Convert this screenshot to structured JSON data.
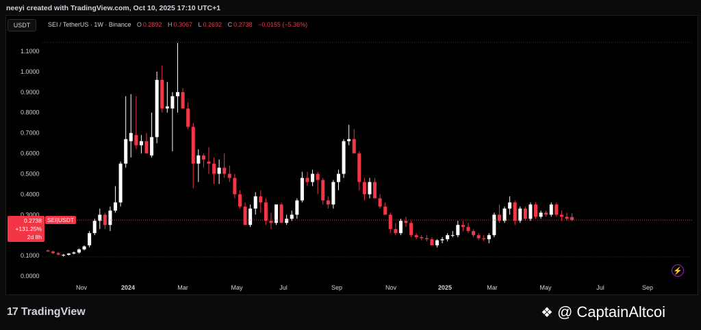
{
  "header": {
    "created_text": "neeyi created with TradingView.com, Oct 10, 2025 17:10 UTC+1"
  },
  "toolbar": {
    "currency": "USDT"
  },
  "legend": {
    "symbol": "SEI / TetherUS · 1W · Binance",
    "o_label": "O",
    "o_value": "0.2892",
    "h_label": "H",
    "h_value": "0.3067",
    "l_label": "L",
    "l_value": "0.2692",
    "c_label": "C",
    "c_value": "0.2738",
    "change": "−0.0155 (−5.36%)"
  },
  "price_tag": {
    "price": "0.2738",
    "change": "+131.25%",
    "countdown": "2d 8h",
    "pair": "SEI|USDT"
  },
  "footer": {
    "brand": "TradingView",
    "watermark": "@ CaptainAltcoi"
  },
  "colors": {
    "up": "#ffffff",
    "down": "#f23645",
    "background": "#000000",
    "accent": "#9c27b0"
  },
  "icons": {
    "logo": "tradingview-logo-icon",
    "watermark": "binance-diamond-icon",
    "bolt": "lightning-icon"
  },
  "chart_data": {
    "type": "candlestick",
    "title": "",
    "ylim": [
      0.0,
      1.15
    ],
    "y_ticks": [
      "0.0000",
      "0.1000",
      "0.2000",
      "0.3000",
      "0.4000",
      "0.5000",
      "0.6000",
      "0.7000",
      "0.8000",
      "0.9000",
      "1.0000",
      "1.1000"
    ],
    "x_ticks": [
      "Nov",
      "2024",
      "Mar",
      "May",
      "Jul",
      "Sep",
      "Nov",
      "2025",
      "Mar",
      "May",
      "Jul",
      "Sep"
    ],
    "grid": false,
    "last_price": 0.2738,
    "ohlc": [
      [
        0.125,
        0.13,
        0.118,
        0.12
      ],
      [
        0.12,
        0.125,
        0.108,
        0.112
      ],
      [
        0.112,
        0.118,
        0.1,
        0.105
      ],
      [
        0.1,
        0.108,
        0.095,
        0.104
      ],
      [
        0.104,
        0.112,
        0.1,
        0.11
      ],
      [
        0.11,
        0.12,
        0.106,
        0.115
      ],
      [
        0.115,
        0.135,
        0.11,
        0.13
      ],
      [
        0.13,
        0.15,
        0.125,
        0.145
      ],
      [
        0.15,
        0.22,
        0.14,
        0.21
      ],
      [
        0.21,
        0.28,
        0.2,
        0.27
      ],
      [
        0.27,
        0.33,
        0.23,
        0.3
      ],
      [
        0.3,
        0.31,
        0.23,
        0.25
      ],
      [
        0.25,
        0.34,
        0.22,
        0.32
      ],
      [
        0.32,
        0.44,
        0.31,
        0.36
      ],
      [
        0.36,
        0.56,
        0.34,
        0.55
      ],
      [
        0.55,
        0.88,
        0.53,
        0.67
      ],
      [
        0.66,
        0.89,
        0.58,
        0.7
      ],
      [
        0.69,
        0.88,
        0.62,
        0.64
      ],
      [
        0.64,
        0.69,
        0.6,
        0.66
      ],
      [
        0.66,
        0.7,
        0.6,
        0.6
      ],
      [
        0.59,
        0.8,
        0.58,
        0.68
      ],
      [
        0.68,
        1.0,
        0.65,
        0.96
      ],
      [
        0.96,
        1.03,
        0.8,
        0.82
      ],
      [
        0.82,
        0.95,
        0.8,
        0.83
      ],
      [
        0.82,
        0.9,
        0.61,
        0.88
      ],
      [
        0.88,
        1.14,
        0.8,
        0.9
      ],
      [
        0.9,
        0.92,
        0.82,
        0.82
      ],
      [
        0.82,
        0.85,
        0.72,
        0.73
      ],
      [
        0.73,
        0.75,
        0.43,
        0.55
      ],
      [
        0.55,
        0.62,
        0.46,
        0.59
      ],
      [
        0.59,
        0.6,
        0.53,
        0.57
      ],
      [
        0.56,
        0.63,
        0.5,
        0.55
      ],
      [
        0.55,
        0.58,
        0.45,
        0.5
      ],
      [
        0.5,
        0.57,
        0.45,
        0.53
      ],
      [
        0.53,
        0.6,
        0.48,
        0.5
      ],
      [
        0.5,
        0.54,
        0.46,
        0.48
      ],
      [
        0.48,
        0.5,
        0.38,
        0.4
      ],
      [
        0.4,
        0.42,
        0.33,
        0.34
      ],
      [
        0.34,
        0.36,
        0.25,
        0.25
      ],
      [
        0.25,
        0.35,
        0.24,
        0.33
      ],
      [
        0.33,
        0.41,
        0.3,
        0.39
      ],
      [
        0.39,
        0.42,
        0.31,
        0.36
      ],
      [
        0.36,
        0.38,
        0.25,
        0.27
      ],
      [
        0.27,
        0.31,
        0.23,
        0.26
      ],
      [
        0.26,
        0.35,
        0.25,
        0.35
      ],
      [
        0.35,
        0.36,
        0.26,
        0.26
      ],
      [
        0.26,
        0.3,
        0.25,
        0.28
      ],
      [
        0.28,
        0.32,
        0.27,
        0.3
      ],
      [
        0.3,
        0.38,
        0.28,
        0.37
      ],
      [
        0.37,
        0.51,
        0.36,
        0.48
      ],
      [
        0.48,
        0.51,
        0.44,
        0.46
      ],
      [
        0.46,
        0.52,
        0.44,
        0.5
      ],
      [
        0.5,
        0.51,
        0.4,
        0.47
      ],
      [
        0.47,
        0.48,
        0.35,
        0.37
      ],
      [
        0.37,
        0.39,
        0.33,
        0.35
      ],
      [
        0.35,
        0.47,
        0.33,
        0.46
      ],
      [
        0.46,
        0.52,
        0.42,
        0.5
      ],
      [
        0.5,
        0.67,
        0.48,
        0.66
      ],
      [
        0.66,
        0.74,
        0.64,
        0.67
      ],
      [
        0.67,
        0.72,
        0.6,
        0.6
      ],
      [
        0.6,
        0.61,
        0.42,
        0.46
      ],
      [
        0.46,
        0.48,
        0.37,
        0.4
      ],
      [
        0.4,
        0.48,
        0.38,
        0.46
      ],
      [
        0.46,
        0.48,
        0.38,
        0.38
      ],
      [
        0.38,
        0.4,
        0.33,
        0.34
      ],
      [
        0.34,
        0.36,
        0.3,
        0.3
      ],
      [
        0.3,
        0.31,
        0.21,
        0.23
      ],
      [
        0.23,
        0.26,
        0.2,
        0.21
      ],
      [
        0.21,
        0.28,
        0.2,
        0.27
      ],
      [
        0.27,
        0.29,
        0.24,
        0.26
      ],
      [
        0.26,
        0.27,
        0.19,
        0.2
      ],
      [
        0.2,
        0.21,
        0.18,
        0.19
      ],
      [
        0.19,
        0.2,
        0.175,
        0.185
      ],
      [
        0.185,
        0.2,
        0.17,
        0.18
      ],
      [
        0.18,
        0.19,
        0.15,
        0.15
      ],
      [
        0.15,
        0.18,
        0.14,
        0.175
      ],
      [
        0.175,
        0.19,
        0.16,
        0.18
      ],
      [
        0.18,
        0.21,
        0.17,
        0.2
      ],
      [
        0.2,
        0.22,
        0.19,
        0.2
      ],
      [
        0.2,
        0.27,
        0.19,
        0.25
      ],
      [
        0.25,
        0.27,
        0.22,
        0.24
      ],
      [
        0.24,
        0.26,
        0.21,
        0.22
      ],
      [
        0.22,
        0.23,
        0.19,
        0.2
      ],
      [
        0.2,
        0.21,
        0.175,
        0.185
      ],
      [
        0.185,
        0.2,
        0.17,
        0.18
      ],
      [
        0.18,
        0.21,
        0.16,
        0.2
      ],
      [
        0.2,
        0.31,
        0.19,
        0.3
      ],
      [
        0.3,
        0.35,
        0.26,
        0.27
      ],
      [
        0.27,
        0.34,
        0.26,
        0.33
      ],
      [
        0.33,
        0.39,
        0.3,
        0.36
      ],
      [
        0.36,
        0.37,
        0.25,
        0.27
      ],
      [
        0.27,
        0.34,
        0.26,
        0.33
      ],
      [
        0.33,
        0.34,
        0.27,
        0.28
      ],
      [
        0.28,
        0.36,
        0.27,
        0.35
      ],
      [
        0.35,
        0.36,
        0.28,
        0.29
      ],
      [
        0.29,
        0.32,
        0.28,
        0.31
      ],
      [
        0.31,
        0.32,
        0.29,
        0.3
      ],
      [
        0.3,
        0.36,
        0.29,
        0.35
      ],
      [
        0.35,
        0.36,
        0.29,
        0.3
      ],
      [
        0.3,
        0.32,
        0.27,
        0.29
      ],
      [
        0.29,
        0.31,
        0.27,
        0.28
      ],
      [
        0.289,
        0.307,
        0.269,
        0.274
      ]
    ]
  }
}
